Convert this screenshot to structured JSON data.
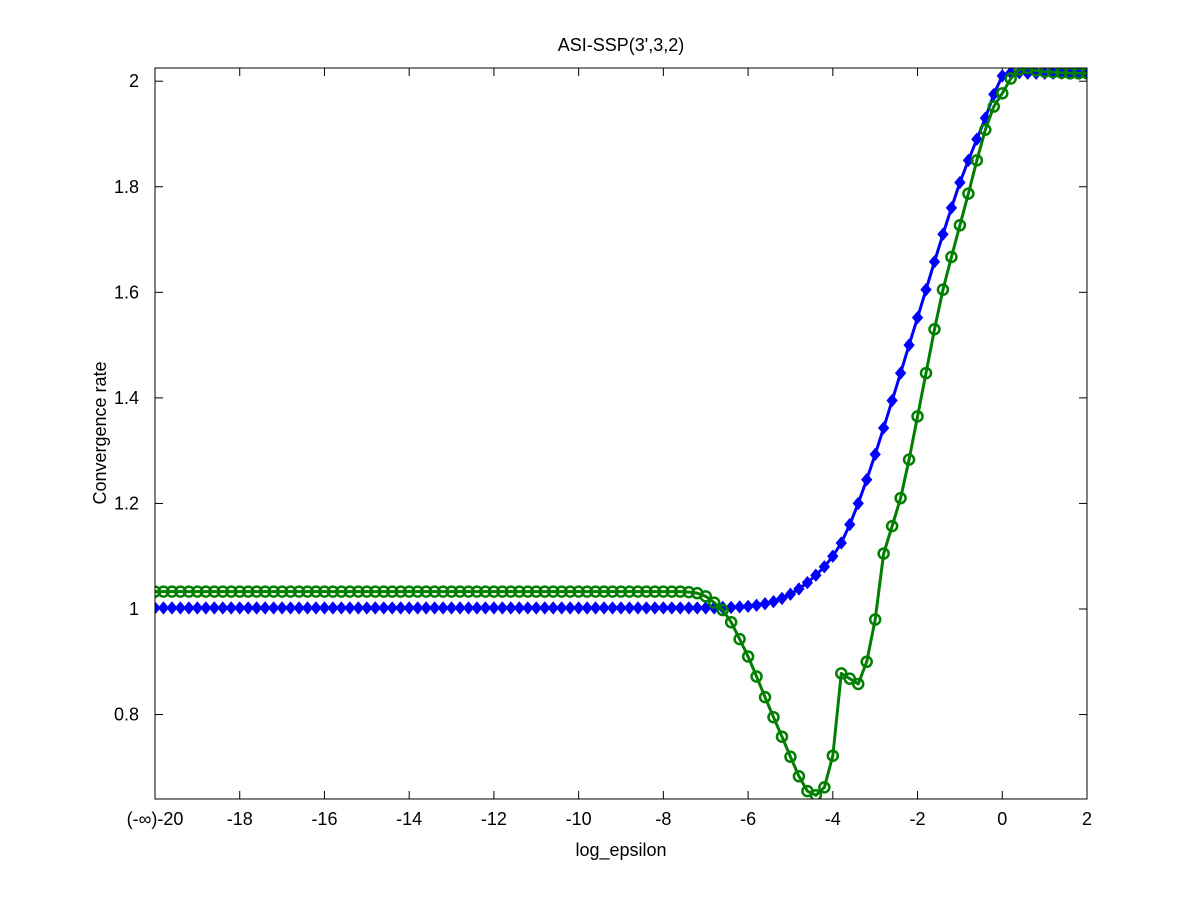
{
  "chart_data": {
    "type": "line",
    "title": "ASI-SSP(3',3,2)",
    "xlabel": "log_epsilon",
    "ylabel": "Convergence rate",
    "xlim": [
      -20,
      2
    ],
    "ylim": [
      0.64,
      2.025
    ],
    "grid": false,
    "xticks": [
      -20,
      -18,
      -16,
      -14,
      -12,
      -10,
      -8,
      -6,
      -4,
      -2,
      0,
      2
    ],
    "xtick_labels": [
      "(-∞)-20",
      "-18",
      "-16",
      "-14",
      "-12",
      "-10",
      "-8",
      "-6",
      "-4",
      "-2",
      "0",
      "2"
    ],
    "yticks": [
      0.8,
      1.0,
      1.2,
      1.4,
      1.6,
      1.8,
      2.0
    ],
    "ytick_labels": [
      "0.8",
      "1",
      "1.2",
      "1.4",
      "1.6",
      "1.8",
      "2"
    ],
    "x_step": 0.2,
    "series": [
      {
        "color": "#0000ff",
        "marker": "diamond",
        "values": [
          1.002,
          1.002,
          1.002,
          1.002,
          1.002,
          1.002,
          1.002,
          1.002,
          1.002,
          1.002,
          1.002,
          1.002,
          1.002,
          1.002,
          1.002,
          1.002,
          1.002,
          1.002,
          1.002,
          1.002,
          1.002,
          1.002,
          1.002,
          1.002,
          1.002,
          1.002,
          1.002,
          1.002,
          1.002,
          1.002,
          1.002,
          1.002,
          1.002,
          1.002,
          1.002,
          1.002,
          1.002,
          1.002,
          1.002,
          1.002,
          1.002,
          1.002,
          1.002,
          1.002,
          1.002,
          1.002,
          1.002,
          1.002,
          1.002,
          1.002,
          1.002,
          1.002,
          1.002,
          1.002,
          1.002,
          1.002,
          1.002,
          1.002,
          1.002,
          1.002,
          1.002,
          1.002,
          1.002,
          1.002,
          1.002,
          1.002,
          1.002,
          1.003,
          1.003,
          1.004,
          1.005,
          1.007,
          1.01,
          1.014,
          1.02,
          1.028,
          1.038,
          1.05,
          1.064,
          1.08,
          1.1,
          1.125,
          1.16,
          1.2,
          1.245,
          1.293,
          1.343,
          1.395,
          1.447,
          1.5,
          1.552,
          1.605,
          1.658,
          1.71,
          1.76,
          1.808,
          1.85,
          1.89,
          1.93,
          1.975,
          2.01,
          2.016,
          2.016,
          2.015,
          2.015,
          2.015,
          2.015,
          2.015,
          2.015,
          2.015,
          2.015
        ]
      },
      {
        "color": "#007f00",
        "marker": "circle",
        "values": [
          1.033,
          1.033,
          1.033,
          1.033,
          1.033,
          1.033,
          1.033,
          1.033,
          1.033,
          1.033,
          1.033,
          1.033,
          1.033,
          1.033,
          1.033,
          1.033,
          1.033,
          1.033,
          1.033,
          1.033,
          1.033,
          1.033,
          1.033,
          1.033,
          1.033,
          1.033,
          1.033,
          1.033,
          1.033,
          1.033,
          1.033,
          1.033,
          1.033,
          1.033,
          1.033,
          1.033,
          1.033,
          1.033,
          1.033,
          1.033,
          1.033,
          1.033,
          1.033,
          1.033,
          1.033,
          1.033,
          1.033,
          1.033,
          1.033,
          1.033,
          1.033,
          1.033,
          1.033,
          1.033,
          1.033,
          1.033,
          1.033,
          1.033,
          1.033,
          1.033,
          1.033,
          1.033,
          1.033,
          1.032,
          1.03,
          1.024,
          1.012,
          0.998,
          0.975,
          0.943,
          0.91,
          0.872,
          0.833,
          0.795,
          0.758,
          0.72,
          0.683,
          0.655,
          0.647,
          0.662,
          0.722,
          0.878,
          0.868,
          0.858,
          0.9,
          0.98,
          1.105,
          1.157,
          1.21,
          1.283,
          1.365,
          1.447,
          1.53,
          1.605,
          1.667,
          1.727,
          1.787,
          1.85,
          1.908,
          1.952,
          1.977,
          2.005,
          2.022,
          2.025,
          2.02,
          2.018,
          2.017,
          2.016,
          2.015,
          2.015,
          2.015
        ]
      }
    ]
  }
}
